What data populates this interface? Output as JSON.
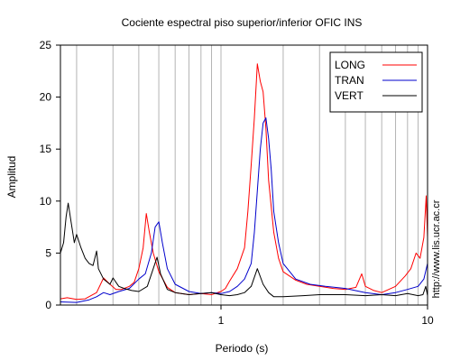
{
  "chart_data": {
    "type": "line",
    "title": "Cociente espectral piso superior/inferior  OFIC INS",
    "xlabel": "Periodo (s)",
    "ylabel": "Amplitud",
    "x_scale": "log",
    "xlim": [
      0.167,
      10
    ],
    "ylim": [
      0,
      25
    ],
    "x_tick_labels": [
      {
        "value": 1,
        "label": "1"
      },
      {
        "value": 10,
        "label": "10"
      }
    ],
    "y_tick_labels": [
      0,
      5,
      10,
      15,
      20,
      25
    ],
    "grid": "vertical",
    "legend_position": "top-right",
    "side_annotation": "http://www.lis.ucr.ac.cr",
    "series": [
      {
        "name": "LONG",
        "color": "#ff0000",
        "points": [
          [
            0.167,
            0.6
          ],
          [
            0.18,
            0.7
          ],
          [
            0.2,
            0.55
          ],
          [
            0.22,
            0.6
          ],
          [
            0.25,
            1.2
          ],
          [
            0.27,
            2.6
          ],
          [
            0.29,
            2.0
          ],
          [
            0.31,
            1.5
          ],
          [
            0.33,
            1.5
          ],
          [
            0.36,
            1.8
          ],
          [
            0.38,
            2.2
          ],
          [
            0.4,
            3.5
          ],
          [
            0.42,
            5.5
          ],
          [
            0.435,
            8.8
          ],
          [
            0.45,
            7.0
          ],
          [
            0.47,
            5.0
          ],
          [
            0.5,
            3.2
          ],
          [
            0.55,
            1.7
          ],
          [
            0.6,
            1.2
          ],
          [
            0.7,
            1.0
          ],
          [
            0.8,
            1.1
          ],
          [
            0.9,
            1.0
          ],
          [
            1.0,
            1.3
          ],
          [
            1.05,
            1.6
          ],
          [
            1.1,
            2.3
          ],
          [
            1.2,
            3.5
          ],
          [
            1.3,
            5.5
          ],
          [
            1.35,
            9.0
          ],
          [
            1.4,
            13.5
          ],
          [
            1.45,
            18.0
          ],
          [
            1.5,
            23.2
          ],
          [
            1.55,
            21.5
          ],
          [
            1.6,
            20.5
          ],
          [
            1.65,
            17.0
          ],
          [
            1.7,
            12.0
          ],
          [
            1.8,
            7.0
          ],
          [
            1.9,
            4.5
          ],
          [
            2.0,
            3.2
          ],
          [
            2.3,
            2.4
          ],
          [
            2.6,
            2.0
          ],
          [
            3.0,
            1.8
          ],
          [
            3.5,
            1.6
          ],
          [
            4.0,
            1.5
          ],
          [
            4.5,
            1.7
          ],
          [
            4.8,
            3.0
          ],
          [
            5.0,
            1.8
          ],
          [
            5.5,
            1.4
          ],
          [
            6.0,
            1.2
          ],
          [
            7.0,
            1.8
          ],
          [
            7.8,
            2.8
          ],
          [
            8.3,
            3.5
          ],
          [
            8.8,
            5.0
          ],
          [
            9.2,
            4.5
          ],
          [
            9.6,
            6.5
          ],
          [
            9.85,
            10.5
          ],
          [
            10.0,
            6.5
          ]
        ]
      },
      {
        "name": "TRAN",
        "color": "#0000cc",
        "points": [
          [
            0.167,
            0.3
          ],
          [
            0.2,
            0.25
          ],
          [
            0.23,
            0.5
          ],
          [
            0.25,
            0.8
          ],
          [
            0.27,
            1.2
          ],
          [
            0.29,
            1.0
          ],
          [
            0.32,
            1.3
          ],
          [
            0.36,
            1.6
          ],
          [
            0.4,
            2.5
          ],
          [
            0.43,
            3.0
          ],
          [
            0.46,
            5.0
          ],
          [
            0.48,
            7.5
          ],
          [
            0.5,
            8.0
          ],
          [
            0.52,
            6.0
          ],
          [
            0.55,
            3.5
          ],
          [
            0.6,
            2.0
          ],
          [
            0.7,
            1.3
          ],
          [
            0.8,
            1.1
          ],
          [
            0.9,
            1.2
          ],
          [
            1.0,
            1.1
          ],
          [
            1.1,
            1.3
          ],
          [
            1.2,
            1.8
          ],
          [
            1.3,
            2.5
          ],
          [
            1.4,
            4.0
          ],
          [
            1.45,
            7.0
          ],
          [
            1.5,
            11.0
          ],
          [
            1.55,
            15.0
          ],
          [
            1.6,
            17.5
          ],
          [
            1.65,
            18.0
          ],
          [
            1.7,
            16.0
          ],
          [
            1.75,
            13.0
          ],
          [
            1.8,
            9.0
          ],
          [
            1.9,
            6.0
          ],
          [
            2.0,
            4.0
          ],
          [
            2.3,
            2.5
          ],
          [
            2.7,
            2.0
          ],
          [
            3.2,
            1.8
          ],
          [
            4.0,
            1.6
          ],
          [
            5.0,
            1.2
          ],
          [
            6.0,
            1.0
          ],
          [
            7.0,
            1.2
          ],
          [
            8.0,
            1.5
          ],
          [
            9.0,
            1.8
          ],
          [
            9.6,
            2.5
          ],
          [
            10.0,
            4.0
          ]
        ]
      },
      {
        "name": "VERT",
        "color": "#000000",
        "points": [
          [
            0.167,
            5.0
          ],
          [
            0.173,
            6.0
          ],
          [
            0.178,
            8.5
          ],
          [
            0.182,
            9.8
          ],
          [
            0.188,
            8.0
          ],
          [
            0.195,
            6.0
          ],
          [
            0.2,
            6.8
          ],
          [
            0.21,
            5.5
          ],
          [
            0.22,
            4.5
          ],
          [
            0.23,
            4.0
          ],
          [
            0.24,
            3.8
          ],
          [
            0.25,
            5.2
          ],
          [
            0.255,
            3.5
          ],
          [
            0.27,
            2.5
          ],
          [
            0.29,
            2.0
          ],
          [
            0.3,
            2.6
          ],
          [
            0.32,
            1.8
          ],
          [
            0.34,
            1.6
          ],
          [
            0.37,
            1.4
          ],
          [
            0.4,
            1.3
          ],
          [
            0.44,
            1.8
          ],
          [
            0.47,
            3.5
          ],
          [
            0.49,
            4.6
          ],
          [
            0.51,
            3.0
          ],
          [
            0.55,
            1.5
          ],
          [
            0.6,
            1.2
          ],
          [
            0.7,
            1.0
          ],
          [
            0.8,
            1.1
          ],
          [
            0.9,
            1.2
          ],
          [
            1.0,
            1.0
          ],
          [
            1.1,
            0.9
          ],
          [
            1.2,
            1.0
          ],
          [
            1.3,
            1.2
          ],
          [
            1.4,
            1.8
          ],
          [
            1.5,
            3.5
          ],
          [
            1.6,
            2.0
          ],
          [
            1.7,
            1.2
          ],
          [
            1.8,
            0.8
          ],
          [
            2.0,
            0.8
          ],
          [
            2.5,
            0.9
          ],
          [
            3.0,
            1.0
          ],
          [
            4.0,
            1.0
          ],
          [
            5.0,
            0.9
          ],
          [
            6.0,
            1.0
          ],
          [
            7.0,
            0.9
          ],
          [
            8.0,
            1.1
          ],
          [
            9.0,
            0.9
          ],
          [
            9.5,
            1.0
          ],
          [
            9.8,
            1.8
          ],
          [
            10.0,
            0.9
          ]
        ]
      }
    ]
  }
}
